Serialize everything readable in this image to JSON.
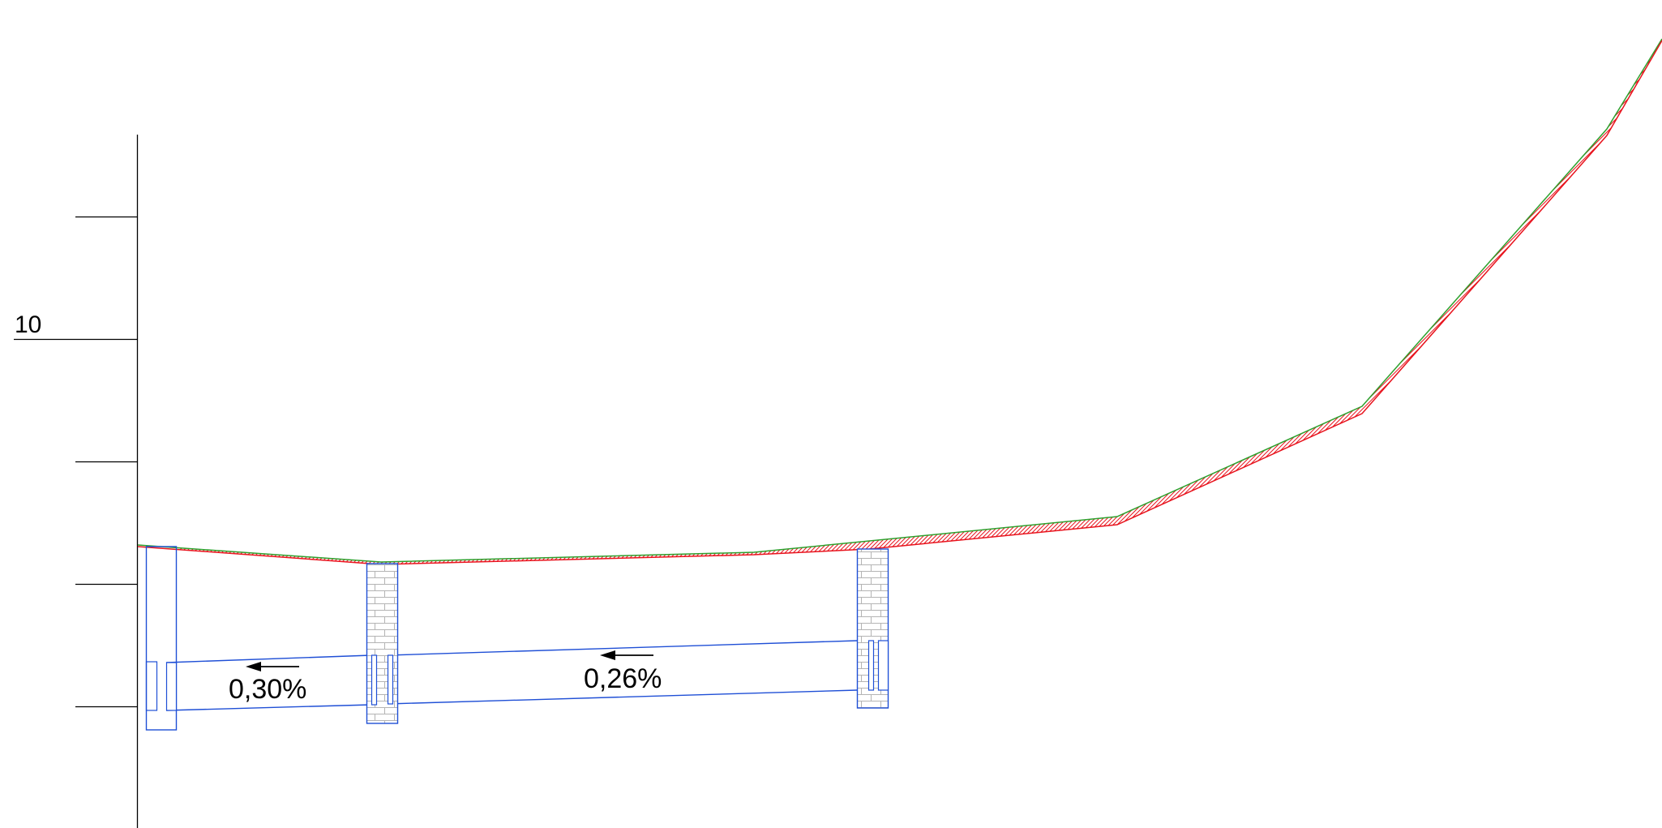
{
  "drawing": {
    "vertical_axis": {
      "labeled_tick": "10"
    },
    "slopes": [
      {
        "id": "slope-1",
        "label": "0,30%",
        "direction": "left"
      },
      {
        "id": "slope-2",
        "label": "0,26%",
        "direction": "left"
      }
    ],
    "manholes": [
      {
        "id": "manhole-start",
        "kind": "plain"
      },
      {
        "id": "manhole-1",
        "kind": "brick"
      },
      {
        "id": "manhole-2",
        "kind": "brick"
      }
    ]
  },
  "colors": {
    "background": "#ffffff",
    "axis": "#000000",
    "terrain_existing": "#2ea02e",
    "terrain_design": "#e8141e",
    "hatch": "#e8141e",
    "pipe": "#1f4fd6",
    "brick_line": "#b4b4b4"
  }
}
